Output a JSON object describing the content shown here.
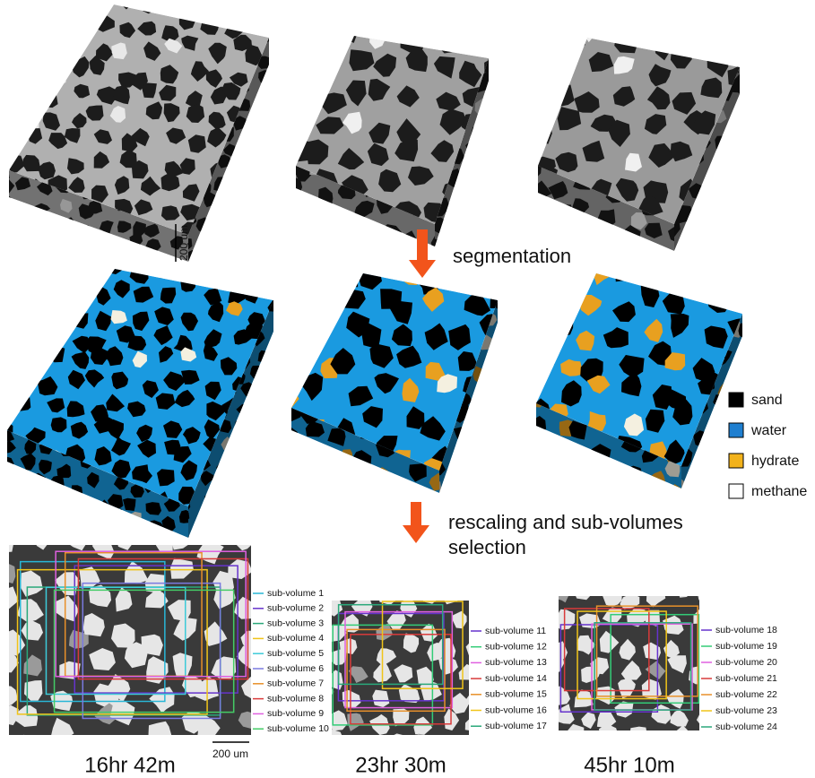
{
  "scale_bar_top": "200 um",
  "arrow_1": "segmentation",
  "legend": [
    "sand",
    "water",
    "hydrate",
    "methane"
  ],
  "arrow_2": [
    "rescaling and sub-volumes",
    "selection"
  ],
  "scale_bar_bottom": "200 um",
  "panels": [
    {
      "time": "16hr 42m",
      "subvolumes": [
        "sub-volume 1",
        "sub-volume 2",
        "sub-volume 3",
        "sub-volume 4",
        "sub-volume 5",
        "sub-volume 6",
        "sub-volume 7",
        "sub-volume 8",
        "sub-volume 9",
        "sub-volume 10"
      ]
    },
    {
      "time": "23hr 30m",
      "subvolumes": [
        "sub-volume 11",
        "sub-volume 12",
        "sub-volume 13",
        "sub-volume 14",
        "sub-volume 15",
        "sub-volume 16",
        "sub-volume 17"
      ]
    },
    {
      "time": "45hr 10m",
      "subvolumes": [
        "sub-volume 18",
        "sub-volume 19",
        "sub-volume 20",
        "sub-volume 21",
        "sub-volume 22",
        "sub-volume 23",
        "sub-volume 24"
      ]
    }
  ]
}
